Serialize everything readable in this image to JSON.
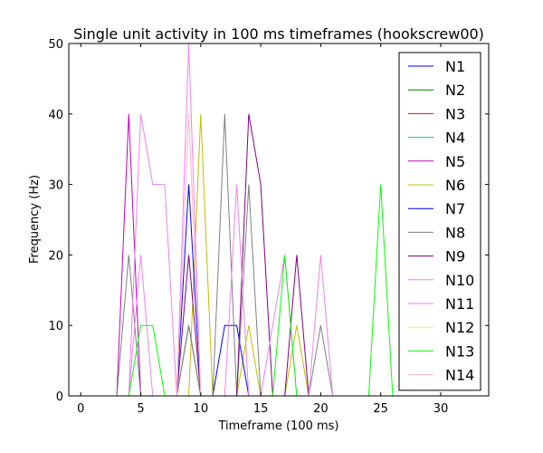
{
  "chart_data": {
    "type": "line",
    "title": "Single unit activity in 100 ms timeframes (hookscrew00)",
    "xlabel": "Timeframe (100 ms)",
    "ylabel": "Frequency (Hz)",
    "xlim": [
      -1,
      34
    ],
    "ylim": [
      0,
      50
    ],
    "xticks": [
      0,
      5,
      10,
      15,
      20,
      25,
      30
    ],
    "yticks": [
      0,
      10,
      20,
      30,
      40,
      50
    ],
    "grid": false,
    "legend": "right",
    "x": [
      0,
      1,
      2,
      3,
      4,
      5,
      6,
      7,
      8,
      9,
      10,
      11,
      12,
      13,
      14,
      15,
      16,
      17,
      18,
      19,
      20,
      21,
      22,
      23,
      24,
      25,
      26,
      27,
      28,
      29,
      30,
      31,
      32,
      33
    ],
    "series": [
      {
        "name": "N1",
        "color": "#0000ff",
        "values": [
          0,
          0,
          0,
          0,
          0,
          0,
          0,
          0,
          0,
          0,
          0,
          0,
          0,
          0,
          0,
          0,
          0,
          0,
          0,
          0,
          0,
          0,
          0,
          0,
          0,
          0,
          0,
          0,
          0,
          0,
          0,
          0,
          0,
          0
        ]
      },
      {
        "name": "N2",
        "color": "#008000",
        "values": [
          0,
          0,
          0,
          0,
          0,
          0,
          0,
          0,
          0,
          10,
          0,
          0,
          0,
          0,
          0,
          0,
          0,
          0,
          0,
          0,
          0,
          0,
          0,
          0,
          0,
          0,
          0,
          0,
          0,
          0,
          0,
          0,
          0,
          0
        ]
      },
      {
        "name": "N3",
        "color": "#ff0000",
        "values": [
          0,
          0,
          0,
          0,
          0,
          0,
          0,
          0,
          0,
          0,
          0,
          0,
          0,
          0,
          0,
          0,
          0,
          0,
          0,
          0,
          0,
          0,
          0,
          0,
          0,
          0,
          0,
          0,
          0,
          0,
          0,
          0,
          0,
          0
        ]
      },
      {
        "name": "N4",
        "color": "#00bfbf",
        "values": [
          0,
          0,
          0,
          0,
          0,
          0,
          0,
          0,
          0,
          0,
          0,
          0,
          0,
          0,
          0,
          0,
          0,
          0,
          0,
          0,
          0,
          0,
          0,
          0,
          0,
          0,
          0,
          0,
          0,
          0,
          0,
          0,
          0,
          0
        ]
      },
      {
        "name": "N5",
        "color": "#bf00bf",
        "values": [
          0,
          0,
          0,
          0,
          40,
          0,
          0,
          0,
          0,
          0,
          0,
          0,
          0,
          0,
          0,
          0,
          0,
          0,
          0,
          0,
          0,
          0,
          0,
          0,
          0,
          0,
          0,
          0,
          0,
          0,
          0,
          0,
          0,
          0
        ]
      },
      {
        "name": "N6",
        "color": "#bfbf00",
        "values": [
          0,
          0,
          0,
          0,
          0,
          0,
          0,
          0,
          0,
          0,
          40,
          0,
          0,
          0,
          10,
          0,
          0,
          0,
          10,
          0,
          0,
          0,
          0,
          0,
          0,
          0,
          0,
          0,
          0,
          0,
          0,
          0,
          0,
          0
        ]
      },
      {
        "name": "N7",
        "color": "#0000ff",
        "values": [
          0,
          0,
          0,
          0,
          0,
          0,
          0,
          0,
          0,
          30,
          0,
          0,
          10,
          10,
          0,
          0,
          0,
          0,
          0,
          0,
          0,
          0,
          0,
          0,
          0,
          0,
          0,
          0,
          0,
          0,
          0,
          0,
          0,
          0
        ]
      },
      {
        "name": "N8",
        "color": "#808080",
        "values": [
          0,
          0,
          0,
          0,
          20,
          0,
          0,
          0,
          0,
          10,
          0,
          0,
          40,
          0,
          30,
          0,
          0,
          0,
          0,
          0,
          10,
          0,
          0,
          0,
          0,
          0,
          0,
          0,
          0,
          0,
          0,
          0,
          0,
          0
        ]
      },
      {
        "name": "N9",
        "color": "#800080",
        "values": [
          0,
          0,
          0,
          0,
          0,
          0,
          0,
          0,
          0,
          20,
          0,
          0,
          0,
          0,
          40,
          30,
          0,
          0,
          20,
          0,
          0,
          0,
          0,
          0,
          0,
          0,
          0,
          0,
          0,
          0,
          0,
          0,
          0,
          0
        ]
      },
      {
        "name": "N10",
        "color": "#ee82ee",
        "values": [
          0,
          0,
          0,
          0,
          0,
          20,
          0,
          0,
          0,
          0,
          0,
          0,
          0,
          30,
          0,
          0,
          0,
          0,
          0,
          0,
          20,
          0,
          0,
          0,
          0,
          0,
          0,
          0,
          0,
          0,
          0,
          0,
          0,
          0
        ]
      },
      {
        "name": "N11",
        "color": "#ee82ee",
        "values": [
          0,
          0,
          0,
          0,
          0,
          40,
          30,
          30,
          0,
          50,
          0,
          0,
          0,
          0,
          0,
          0,
          10,
          20,
          0,
          0,
          0,
          0,
          0,
          0,
          0,
          0,
          0,
          0,
          0,
          0,
          0,
          0,
          0,
          0
        ]
      },
      {
        "name": "N12",
        "color": "#f0e68c",
        "values": [
          0,
          0,
          0,
          0,
          0,
          0,
          0,
          0,
          0,
          0,
          0,
          0,
          0,
          0,
          0,
          0,
          0,
          0,
          0,
          0,
          0,
          0,
          0,
          0,
          0,
          0,
          0,
          0,
          0,
          0,
          0,
          0,
          0,
          0
        ]
      },
      {
        "name": "N13",
        "color": "#00ff00",
        "values": [
          0,
          0,
          0,
          0,
          0,
          10,
          10,
          0,
          0,
          0,
          0,
          0,
          0,
          0,
          0,
          0,
          0,
          20,
          0,
          0,
          0,
          0,
          0,
          0,
          0,
          30,
          0,
          0,
          0,
          0,
          0,
          0,
          0,
          0
        ]
      },
      {
        "name": "N14",
        "color": "#ffb6c1",
        "values": [
          0,
          0,
          0,
          0,
          0,
          0,
          0,
          0,
          0,
          40,
          0,
          0,
          0,
          0,
          0,
          0,
          0,
          0,
          0,
          0,
          0,
          0,
          0,
          0,
          0,
          0,
          0,
          0,
          0,
          0,
          0,
          0,
          0,
          0
        ]
      }
    ]
  }
}
